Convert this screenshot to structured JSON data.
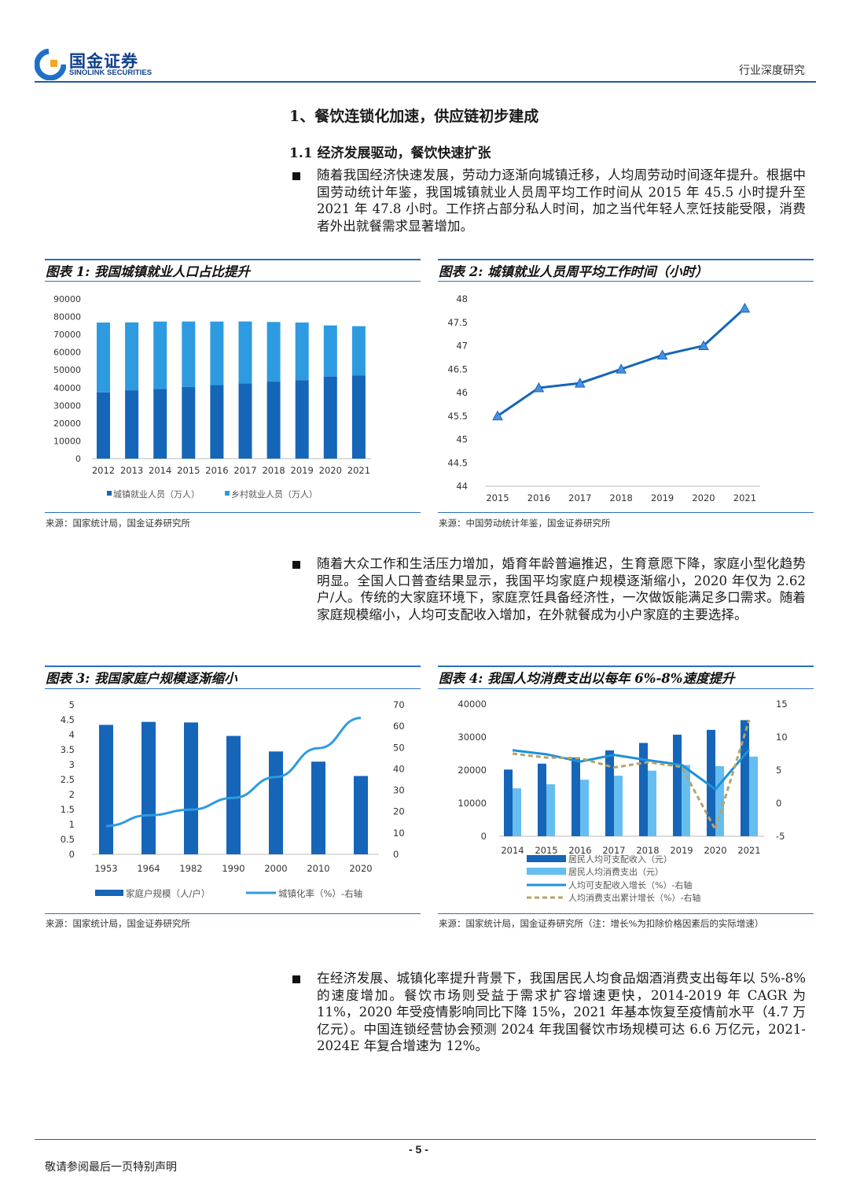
{
  "header": {
    "logo_cn": "国金证券",
    "logo_en": "SINOLINK SECURITIES",
    "report_type": "行业深度研究"
  },
  "section_title": "1、餐饮连锁化加速，供应链初步建成",
  "subsection_title": "1.1 经济发展驱动，餐饮快速扩张",
  "paragraphs": {
    "p1": "随着我国经济快速发展，劳动力逐渐向城镇迁移，人均周劳动时间逐年提升。根据中国劳动统计年鉴，我国城镇就业人员周平均工作时间从 2015 年 45.5 小时提升至 2021 年 47.8 小时。工作挤占部分私人时间，加之当代年轻人烹饪技能受限，消费者外出就餐需求显著增加。",
    "p2": "随着大众工作和生活压力增加，婚育年龄普遍推迟，生育意愿下降，家庭小型化趋势明显。全国人口普查结果显示，我国平均家庭户规模逐渐缩小，2020 年仅为 2.62 户/人。传统的大家庭环境下，家庭烹饪具备经济性，一次做饭能满足多口需求。随着家庭规模缩小，人均可支配收入增加，在外就餐成为小户家庭的主要选择。",
    "p3": "在经济发展、城镇化率提升背景下，我国居民人均食品烟酒消费支出每年以 5%-8%的速度增加。餐饮市场则受益于需求扩容增速更快，2014-2019 年 CAGR 为 11%，2020 年受疫情影响同比下降 15%，2021 年基本恢复至疫情前水平（4.7 万亿元）。中国连锁经营协会预测 2024 年我国餐饮市场规模可达 6.6 万亿元，2021-2024E 年复合增速为 12%。"
  },
  "figures": {
    "fig1": {
      "title": "图表 1:  我国城镇就业人口占比提升",
      "source": "来源：国家统计局，国金证券研究所"
    },
    "fig2": {
      "title": "图表 2:  城镇就业人员周平均工作时间（小时）",
      "source": "来源：中国劳动统计年鉴，国金证券研究所"
    },
    "fig3": {
      "title": "图表 3:  我国家庭户规模逐渐缩小",
      "source": "来源：国家统计局，国金证券研究所"
    },
    "fig4": {
      "title": "图表 4:  我国人均消费支出以每年 6%-8%速度提升",
      "source": "来源：国家统计局，国金证券研究所（注：增长%为扣除价格因素后的实际增速）"
    }
  },
  "chart_data": [
    {
      "type": "bar",
      "stacked": true,
      "categories": [
        "2012",
        "2013",
        "2014",
        "2015",
        "2016",
        "2017",
        "2018",
        "2019",
        "2020",
        "2021"
      ],
      "series": [
        {
          "name": "城镇就业人员（万人）",
          "values": [
            37287,
            38527,
            39310,
            40410,
            41428,
            42462,
            43419,
            44247,
            46271,
            46773
          ],
          "color": "#1565b8"
        },
        {
          "name": "乡村就业人员（万人）",
          "values": [
            39395,
            38240,
            37943,
            36868,
            35836,
            34849,
            33590,
            32477,
            28793,
            27879
          ],
          "color": "#2e9be0"
        }
      ],
      "ylim": [
        0,
        90000
      ],
      "yticks": [
        0,
        10000,
        20000,
        30000,
        40000,
        50000,
        60000,
        70000,
        80000,
        90000
      ],
      "legend": "bottom"
    },
    {
      "type": "line",
      "x": [
        "2015",
        "2016",
        "2017",
        "2018",
        "2019",
        "2020",
        "2021"
      ],
      "series": [
        {
          "name": "",
          "values": [
            45.5,
            46.1,
            46.2,
            46.5,
            46.8,
            47.0,
            47.8
          ],
          "color": "#1565b8"
        }
      ],
      "ylim": [
        44,
        48
      ],
      "yticks": [
        "44",
        "44.5",
        "45",
        "45.5",
        "46",
        "46.5",
        "47",
        "47.5",
        "48"
      ]
    },
    {
      "type": "bar",
      "categories": [
        "1953",
        "1964",
        "1982",
        "1990",
        "2000",
        "2010",
        "2020"
      ],
      "series": [
        {
          "name": "家庭户规模（人/户）",
          "values": [
            4.33,
            4.43,
            4.41,
            3.96,
            3.44,
            3.1,
            2.62
          ],
          "color": "#1565b8",
          "axis": "left"
        },
        {
          "name": "城镇化率（%）-右轴",
          "values": [
            13.26,
            18.3,
            20.91,
            26.44,
            36.22,
            49.68,
            63.89
          ],
          "color": "#2e9be0",
          "axis": "right",
          "type": "line"
        }
      ],
      "ylim": [
        0,
        5
      ],
      "yticks": [
        "0",
        "0.5",
        "1",
        "1.5",
        "2",
        "2.5",
        "3",
        "3.5",
        "4",
        "4.5",
        "5"
      ],
      "y2lim": [
        0,
        70
      ],
      "y2ticks": [
        "0",
        "10",
        "20",
        "30",
        "40",
        "50",
        "60",
        "70"
      ],
      "legend": "bottom"
    },
    {
      "type": "bar",
      "categories": [
        "2014",
        "2015",
        "2016",
        "2017",
        "2018",
        "2019",
        "2020",
        "2021"
      ],
      "series": [
        {
          "name": "居民人均可支配收入（元）",
          "values": [
            20167,
            21966,
            23821,
            25974,
            28228,
            30733,
            32189,
            35128
          ],
          "color": "#1565b8",
          "axis": "left"
        },
        {
          "name": "居民人均消费支出（元）",
          "values": [
            14491,
            15712,
            17111,
            18322,
            19853,
            21559,
            21210,
            24100
          ],
          "color": "#66bdf0",
          "axis": "left"
        },
        {
          "name": "人均可支配收入增长（%）-右轴",
          "values": [
            8.0,
            7.4,
            6.3,
            7.3,
            6.5,
            5.8,
            2.1,
            8.1
          ],
          "color": "#1e90d8",
          "axis": "right",
          "type": "line"
        },
        {
          "name": "人均消费支出累计增长（%）-右轴",
          "values": [
            7.5,
            6.9,
            6.8,
            5.4,
            6.2,
            5.5,
            -4.0,
            12.6
          ],
          "color": "#b5a36a",
          "axis": "right",
          "type": "line",
          "dashed": true
        }
      ],
      "ylim": [
        0,
        40000
      ],
      "yticks": [
        "0",
        "10000",
        "20000",
        "30000",
        "40000"
      ],
      "y2lim": [
        -5,
        15
      ],
      "y2ticks": [
        "-5",
        "0",
        "5",
        "10",
        "15"
      ],
      "legend": "bottom"
    }
  ],
  "footer": {
    "disclaimer": "敬请参阅最后一页特别声明",
    "page": "- 5 -"
  },
  "colors": {
    "brand": "#0e3f8c",
    "rule": "#1f5aa8",
    "dark_bar": "#1565b8",
    "light_bar": "#2e9be0"
  }
}
